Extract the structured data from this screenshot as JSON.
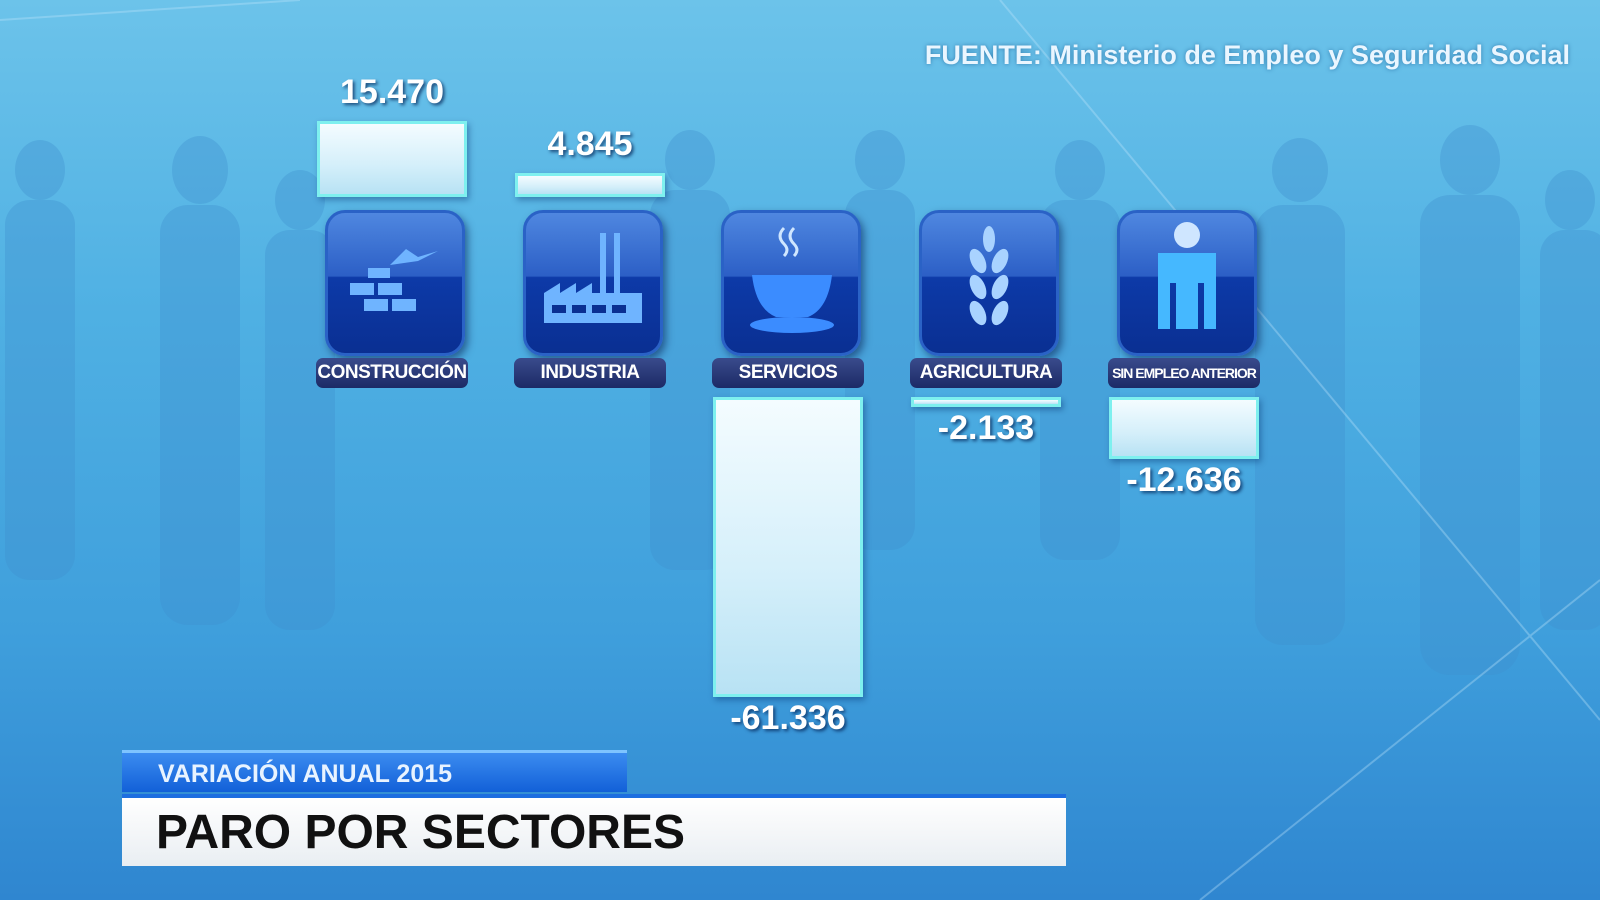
{
  "source": "FUENTE: Ministerio de Empleo y Seguridad Social",
  "subtitle": "VARIACIÓN ANUAL 2015",
  "title": "PARO POR SECTORES",
  "colors": {
    "bar_fill": "#e6f6fc",
    "bar_border": "#7ef0ef",
    "icon_bg": "#1c4cb8",
    "label_bg": "#2a3a78",
    "background": "#4fb0e3"
  },
  "chart_data": {
    "type": "bar",
    "title": "PARO POR SECTORES",
    "subtitle": "VARIACIÓN ANUAL 2015",
    "categories": [
      "CONSTRUCCIÓN",
      "INDUSTRIA",
      "SERVICIOS",
      "AGRICULTURA",
      "SIN EMPLEO ANTERIOR"
    ],
    "values": [
      15470,
      4845,
      -61336,
      -2133,
      -12636
    ],
    "value_labels": [
      "15.470",
      "4.845",
      "-61.336",
      "-2.133",
      "-12.636"
    ],
    "icons": [
      "bricks-trowel-icon",
      "factory-icon",
      "coffee-cup-icon",
      "wheat-icon",
      "person-icon"
    ],
    "grid": false,
    "legend": "none"
  }
}
